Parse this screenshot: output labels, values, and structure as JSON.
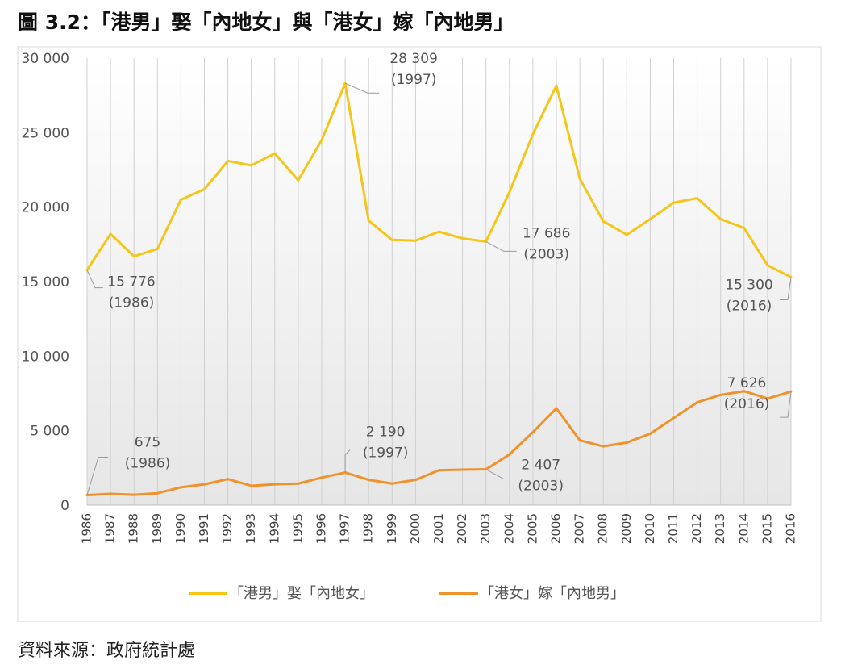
{
  "title": "圖 3.2：「港男」娶「內地女」與「港女」嫁「內地男」",
  "source": "資料來源：政府統計處",
  "chart_data": {
    "type": "line",
    "x": [
      1986,
      1987,
      1988,
      1989,
      1990,
      1991,
      1992,
      1993,
      1994,
      1995,
      1996,
      1997,
      1998,
      1999,
      2000,
      2001,
      2002,
      2003,
      2004,
      2005,
      2006,
      2007,
      2008,
      2009,
      2010,
      2011,
      2012,
      2013,
      2014,
      2015,
      2016
    ],
    "ylim": [
      0,
      30000
    ],
    "yticks": [
      0,
      5000,
      10000,
      15000,
      20000,
      25000,
      30000
    ],
    "ytick_labels": [
      "0",
      "5 000",
      "10 000",
      "15 000",
      "20 000",
      "25 000",
      "30 000"
    ],
    "grid": "vertical",
    "legend_position": "bottom",
    "series": [
      {
        "name": "「港男」娶「內地女」",
        "color": "#F5C518",
        "values": [
          15776,
          18200,
          16700,
          17200,
          20500,
          21200,
          23100,
          22800,
          23600,
          21800,
          24500,
          28309,
          19100,
          17800,
          17750,
          18350,
          17900,
          17686,
          21000,
          24900,
          28150,
          21900,
          19050,
          18150,
          19200,
          20300,
          20600,
          19200,
          18600,
          16100,
          15300
        ]
      },
      {
        "name": "「港女」嫁「內地男」",
        "color": "#F0922B",
        "values": [
          675,
          760,
          700,
          800,
          1200,
          1400,
          1750,
          1300,
          1400,
          1450,
          1850,
          2190,
          1700,
          1450,
          1700,
          2350,
          2380,
          2407,
          3400,
          4900,
          6500,
          4350,
          3950,
          4200,
          4800,
          5850,
          6900,
          7400,
          7650,
          7150,
          7626
        ]
      }
    ],
    "annotations": [
      {
        "series": 0,
        "year": 1986,
        "value_label": "15 776",
        "year_label": "(1986)"
      },
      {
        "series": 0,
        "year": 1997,
        "value_label": "28 309",
        "year_label": "(1997)"
      },
      {
        "series": 0,
        "year": 2003,
        "value_label": "17 686",
        "year_label": "(2003)"
      },
      {
        "series": 0,
        "year": 2016,
        "value_label": "15 300",
        "year_label": "(2016)"
      },
      {
        "series": 1,
        "year": 1986,
        "value_label": "675",
        "year_label": "(1986)"
      },
      {
        "series": 1,
        "year": 1997,
        "value_label": "2 190",
        "year_label": "(1997)"
      },
      {
        "series": 1,
        "year": 2003,
        "value_label": "2 407",
        "year_label": "(2003)"
      },
      {
        "series": 1,
        "year": 2016,
        "value_label": "7 626",
        "year_label": "(2016)"
      }
    ]
  }
}
